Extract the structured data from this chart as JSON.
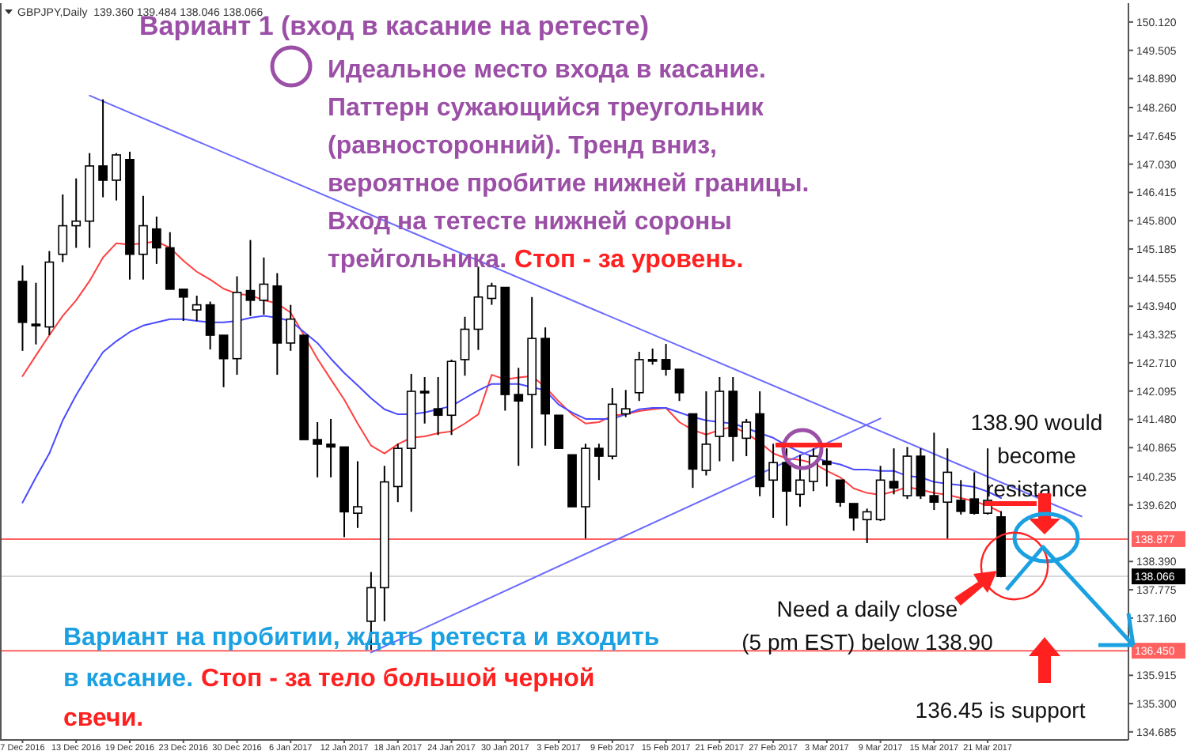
{
  "chart_data": {
    "type": "candlestick",
    "title": "GBPJPY,Daily  139.360 139.484 138.046 138.066",
    "categories": [
      "7 Dec 2016",
      null,
      null,
      null,
      "13 Dec 2016",
      null,
      null,
      null,
      "19 Dec 2016",
      null,
      null,
      null,
      "23 Dec 2016",
      null,
      null,
      null,
      "30 Dec 2016",
      null,
      null,
      null,
      "6 Jan 2017",
      null,
      null,
      null,
      "12 Jan 2017",
      null,
      null,
      null,
      "18 Jan 2017",
      null,
      null,
      null,
      "24 Jan 2017",
      null,
      null,
      null,
      "30 Jan 2017",
      null,
      null,
      null,
      "3 Feb 2017",
      null,
      null,
      null,
      "9 Feb 2017",
      null,
      null,
      null,
      "15 Feb 2017",
      null,
      null,
      null,
      "21 Feb 2017",
      null,
      null,
      null,
      "27 Feb 2017",
      null,
      null,
      null,
      "3 Mar 2017",
      null,
      null,
      null,
      "9 Mar 2017",
      null,
      null,
      null,
      "15 Mar 2017",
      null,
      null,
      null,
      "21 Mar 2017",
      null,
      null,
      null,
      null,
      null,
      null,
      null,
      null,
      null,
      null
    ],
    "ohlc": [
      [
        144.48,
        144.83,
        142.97,
        143.59
      ],
      [
        143.55,
        144.45,
        143.11,
        143.52
      ],
      [
        143.49,
        145.14,
        143.31,
        144.9
      ],
      [
        145.07,
        146.37,
        144.9,
        145.69
      ],
      [
        145.69,
        146.72,
        145.21,
        145.79
      ],
      [
        145.79,
        147.27,
        145.21,
        146.99
      ],
      [
        146.99,
        148.44,
        146.31,
        146.68
      ],
      [
        146.68,
        147.27,
        146.24,
        147.23
      ],
      [
        147.13,
        147.3,
        144.52,
        145.07
      ],
      [
        145.07,
        146.34,
        144.52,
        145.69
      ],
      [
        145.62,
        145.89,
        144.86,
        145.21
      ],
      [
        145.21,
        145.55,
        144.31,
        144.31
      ],
      [
        144.31,
        144.31,
        143.62,
        144.14
      ],
      [
        143.86,
        144.17,
        143.62,
        143.97
      ],
      [
        143.97,
        144.04,
        143.0,
        143.31
      ],
      [
        143.31,
        143.31,
        142.18,
        142.8
      ],
      [
        142.8,
        144.59,
        142.45,
        144.24
      ],
      [
        144.28,
        145.38,
        143.73,
        144.07
      ],
      [
        144.07,
        145.0,
        143.76,
        144.42
      ],
      [
        144.38,
        144.66,
        142.45,
        143.14
      ],
      [
        143.14,
        143.97,
        142.97,
        143.66
      ],
      [
        143.31,
        143.31,
        141.04,
        141.04
      ],
      [
        141.04,
        141.42,
        140.22,
        140.94
      ],
      [
        140.94,
        141.49,
        140.22,
        140.88
      ],
      [
        140.88,
        140.88,
        138.92,
        139.47
      ],
      [
        139.44,
        140.57,
        139.12,
        139.58
      ],
      [
        137.09,
        138.16,
        136.47,
        137.82
      ],
      [
        137.82,
        140.47,
        137.09,
        140.12
      ],
      [
        140.02,
        140.95,
        139.68,
        140.85
      ],
      [
        140.85,
        142.47,
        139.47,
        142.09
      ],
      [
        142.09,
        142.4,
        141.39,
        142.06
      ],
      [
        141.71,
        142.4,
        141.14,
        141.57
      ],
      [
        141.57,
        142.78,
        141.14,
        142.74
      ],
      [
        142.78,
        143.71,
        142.43,
        143.44
      ],
      [
        143.44,
        144.8,
        142.99,
        144.14
      ],
      [
        144.11,
        144.45,
        143.97,
        144.38
      ],
      [
        144.35,
        144.35,
        141.67,
        142.02
      ],
      [
        142.02,
        142.6,
        140.47,
        141.88
      ],
      [
        142.02,
        144.14,
        140.85,
        143.24
      ],
      [
        143.24,
        143.48,
        140.91,
        141.6
      ],
      [
        141.57,
        141.57,
        140.85,
        140.85
      ],
      [
        140.71,
        140.71,
        139.58,
        139.58
      ],
      [
        139.58,
        140.95,
        138.89,
        140.85
      ],
      [
        140.85,
        140.95,
        140.16,
        140.68
      ],
      [
        140.68,
        142.16,
        140.61,
        141.81
      ],
      [
        141.6,
        142.12,
        141.53,
        141.71
      ],
      [
        142.06,
        142.95,
        141.88,
        142.78
      ],
      [
        142.78,
        143.02,
        142.67,
        142.76
      ],
      [
        142.78,
        143.12,
        142.43,
        142.57
      ],
      [
        142.57,
        142.57,
        141.88,
        142.06
      ],
      [
        141.6,
        141.6,
        139.99,
        140.4
      ],
      [
        140.37,
        142.09,
        140.26,
        140.94
      ],
      [
        141.11,
        142.4,
        140.57,
        142.09
      ],
      [
        142.09,
        142.4,
        140.57,
        141.11
      ],
      [
        141.07,
        141.49,
        140.68,
        141.42
      ],
      [
        141.6,
        142.09,
        139.81,
        140.02
      ],
      [
        140.16,
        140.95,
        139.34,
        140.54
      ],
      [
        140.54,
        140.85,
        139.17,
        139.92
      ],
      [
        139.85,
        140.71,
        139.58,
        140.16
      ],
      [
        140.13,
        140.85,
        139.92,
        140.68
      ],
      [
        140.57,
        140.85,
        140.02,
        140.5
      ],
      [
        140.16,
        140.16,
        139.58,
        139.68
      ],
      [
        139.65,
        139.65,
        139.06,
        139.34
      ],
      [
        139.3,
        139.54,
        138.79,
        139.47
      ],
      [
        139.3,
        140.47,
        139.27,
        140.16
      ],
      [
        140.13,
        140.85,
        139.85,
        139.99
      ],
      [
        139.82,
        140.88,
        139.75,
        140.68
      ],
      [
        140.68,
        140.85,
        139.75,
        139.82
      ],
      [
        139.82,
        141.19,
        139.51,
        139.68
      ],
      [
        139.68,
        140.85,
        138.89,
        140.33
      ],
      [
        139.72,
        140.16,
        139.41,
        139.48
      ],
      [
        139.75,
        140.33,
        139.41,
        139.44
      ],
      [
        139.44,
        140.85,
        139.41,
        139.72
      ],
      [
        139.36,
        139.484,
        138.046,
        138.066
      ],
      null,
      null,
      null,
      null,
      null,
      null,
      null,
      null,
      null
    ],
    "series": [
      {
        "type": "line",
        "color": "#ff4040",
        "values": [
          142.42,
          142.87,
          143.31,
          143.73,
          144.07,
          144.49,
          145.0,
          145.31,
          145.28,
          145.31,
          145.35,
          145.21,
          144.93,
          144.69,
          144.52,
          144.32,
          144.21,
          144.18,
          144.07,
          144.0,
          143.8,
          143.31,
          142.8,
          142.35,
          141.91,
          141.39,
          140.91,
          140.74,
          140.94,
          141.08,
          141.11,
          141.18,
          141.22,
          141.39,
          141.59,
          142.45,
          142.35,
          142.39,
          142.42,
          142.18,
          141.87,
          141.59,
          141.39,
          141.42,
          141.56,
          141.59,
          141.66,
          141.7,
          141.73,
          141.42,
          141.25,
          141.15,
          141.25,
          141.32,
          141.18,
          140.98,
          140.74,
          140.63,
          140.6,
          140.53,
          140.36,
          140.22,
          139.98,
          139.88,
          139.84,
          139.91,
          140.01,
          139.95,
          139.88,
          139.84,
          139.77,
          139.7,
          139.6,
          139.46,
          null,
          null,
          null,
          null,
          null,
          null,
          null,
          null,
          null
        ]
      },
      {
        "type": "line",
        "color": "#4a4aff",
        "values": [
          139.67,
          140.22,
          140.74,
          141.46,
          142.01,
          142.49,
          142.94,
          143.18,
          143.38,
          143.52,
          143.59,
          143.66,
          143.66,
          143.62,
          143.59,
          143.59,
          143.62,
          143.69,
          143.73,
          143.69,
          143.62,
          143.38,
          143.14,
          142.8,
          142.49,
          142.22,
          141.94,
          141.7,
          141.59,
          141.59,
          141.63,
          141.7,
          141.77,
          141.94,
          142.11,
          142.25,
          142.25,
          142.25,
          142.18,
          142.11,
          141.8,
          141.63,
          141.49,
          141.49,
          141.49,
          141.59,
          141.7,
          141.73,
          141.73,
          141.63,
          141.53,
          141.46,
          141.42,
          141.39,
          141.29,
          141.18,
          141.08,
          140.91,
          140.77,
          140.67,
          140.56,
          140.5,
          140.39,
          140.39,
          140.36,
          140.36,
          140.25,
          140.22,
          140.12,
          140.08,
          140.05,
          140.01,
          139.91,
          139.77,
          null,
          null,
          null,
          null,
          null,
          null,
          null,
          null,
          null
        ]
      },
      {
        "type": "line",
        "color": "#6a6aff",
        "values": [
          null,
          null,
          null,
          null,
          null,
          148.52,
          null,
          null,
          null,
          null,
          null,
          null,
          null,
          null,
          null,
          null,
          null,
          null,
          null,
          null,
          null,
          null,
          null,
          null,
          null,
          null,
          null,
          null,
          null,
          null,
          null,
          null,
          null,
          null,
          null,
          null,
          null,
          null,
          null,
          null,
          null,
          null,
          null,
          null,
          null,
          null,
          null,
          null,
          null,
          null,
          null,
          null,
          null,
          null,
          null,
          null,
          null,
          null,
          null,
          null,
          null,
          null,
          null,
          null,
          null,
          null,
          null,
          null,
          null,
          null,
          null,
          null,
          null,
          null,
          null,
          null,
          null,
          null,
          null,
          139.37,
          null,
          null,
          null
        ]
      },
      {
        "type": "line",
        "color": "#6a6aff",
        "values": [
          null,
          null,
          null,
          null,
          null,
          null,
          null,
          null,
          null,
          null,
          null,
          null,
          null,
          null,
          null,
          null,
          null,
          null,
          null,
          null,
          null,
          null,
          null,
          null,
          null,
          null,
          136.41,
          null,
          null,
          null,
          null,
          null,
          null,
          null,
          null,
          null,
          null,
          null,
          null,
          null,
          null,
          null,
          null,
          null,
          null,
          null,
          null,
          null,
          null,
          null,
          null,
          null,
          null,
          null,
          null,
          null,
          null,
          null,
          null,
          null,
          null,
          null,
          null,
          null,
          141.5,
          null,
          null,
          null,
          null,
          null,
          null,
          null,
          null,
          null,
          null,
          null,
          null,
          null,
          null,
          null,
          null,
          null,
          null
        ]
      }
    ],
    "ylim": [
      134.51,
      150.53
    ],
    "yticks": [
      {
        "value": 150.12,
        "label": "150.120"
      },
      {
        "value": 149.505,
        "label": "149.505"
      },
      {
        "value": 148.89,
        "label": "148.890"
      },
      {
        "value": 148.26,
        "label": "148.260"
      },
      {
        "value": 147.645,
        "label": "147.645"
      },
      {
        "value": 147.03,
        "label": "147.030"
      },
      {
        "value": 146.415,
        "label": "146.415"
      },
      {
        "value": 145.8,
        "label": "145.800"
      },
      {
        "value": 145.185,
        "label": "145.185"
      },
      {
        "value": 144.555,
        "label": "144.555"
      },
      {
        "value": 143.94,
        "label": "143.940"
      },
      {
        "value": 143.325,
        "label": "143.325"
      },
      {
        "value": 142.71,
        "label": "142.710"
      },
      {
        "value": 142.095,
        "label": "142.095"
      },
      {
        "value": 141.48,
        "label": "141.480"
      },
      {
        "value": 140.865,
        "label": "140.865"
      },
      {
        "value": 140.235,
        "label": "140.235"
      },
      {
        "value": 139.62,
        "label": "139.620"
      },
      {
        "value": 138.39,
        "label": "138.390"
      },
      {
        "value": 137.775,
        "label": "137.775"
      },
      {
        "value": 137.16,
        "label": "137.160"
      },
      {
        "value": 135.915,
        "label": "135.915"
      },
      {
        "value": 135.3,
        "label": "135.300"
      },
      {
        "value": 134.685,
        "label": "134.685"
      }
    ],
    "ref_lines": [
      {
        "axis": "y",
        "value": 138.877,
        "label": "138.877",
        "color": "#ff6060"
      },
      {
        "axis": "y",
        "value": 136.45,
        "label": "136.450",
        "color": "#ff6060"
      },
      {
        "axis": "y",
        "value": 138.066,
        "label": "138.066",
        "color": "#d8d8d8"
      }
    ],
    "grid": false,
    "annotations": [
      "Вариант 1 (вход в касание на ретесте)",
      "Идеальное место входа в касание.",
      "Паттерн сужающийся треугольник",
      "(равносторонний). Тренд вниз,",
      "вероятное пробитие нижней границы.",
      "Вход на тетесте нижней сороны",
      "трейгольника.",
      "Стоп - за уровень.",
      "Вариант на пробитии, ждать ретеста и входить",
      "в касание.",
      "Стоп - за тело большой черной",
      "свечи.",
      "138.90 would",
      "become",
      "resistance",
      "Need a daily close",
      "(5 pm EST) below 138.90",
      "136.45 is support"
    ]
  }
}
